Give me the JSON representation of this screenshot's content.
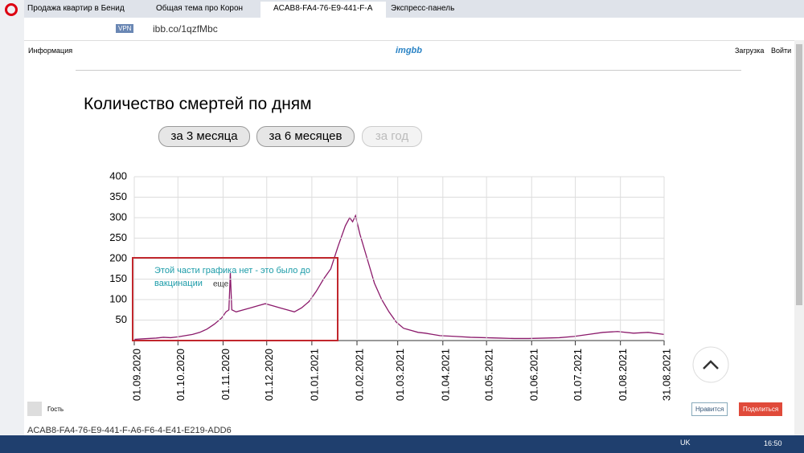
{
  "tabs": [
    "Продажа квартир в Бенид",
    "Общая тема про Корон",
    "ACAB8-FA4-76-E9-441-F-A",
    "Экспресс-панель"
  ],
  "address": {
    "badge": "VPN",
    "url": "ibb.co/1qzfMbc"
  },
  "header": {
    "menu": "Информация",
    "logo": "imgbb",
    "upload": "Загрузка",
    "login": "Войти"
  },
  "chart_data": {
    "type": "line",
    "title": "Количество смертей по дням",
    "buttons": [
      "за 3 месяца",
      "за 6 месяцев",
      "за год"
    ],
    "annotations": [
      "Этой части графика нет - это было до",
      "вакцинации",
      "еще"
    ],
    "xlim": [
      "01.09.2020",
      "31.08.2021"
    ],
    "xticks": [
      "01.09.2020",
      "01.10.2020",
      "01.11.2020",
      "01.12.2020",
      "01.01.2021",
      "01.02.2021",
      "01.03.2021",
      "01.04.2021",
      "01.05.2021",
      "01.06.2021",
      "01.07.2021",
      "01.08.2021",
      "31.08.2021"
    ],
    "ylim": [
      0,
      400
    ],
    "yticks": [
      50,
      100,
      150,
      200,
      250,
      300,
      350,
      400
    ],
    "grid": true,
    "series": [
      {
        "color": "#8b1a6b",
        "x": [
          "01.09.2020",
          "06.09.2020",
          "11.09.2020",
          "16.09.2020",
          "21.09.2020",
          "26.09.2020",
          "01.10.2020",
          "06.10.2020",
          "11.10.2020",
          "16.10.2020",
          "21.10.2020",
          "26.10.2020",
          "31.10.2020",
          "03.11.2020",
          "05.11.2020",
          "06.11.2020",
          "07.11.2020",
          "10.11.2020",
          "15.11.2020",
          "20.11.2020",
          "25.11.2020",
          "30.11.2020",
          "05.12.2020",
          "10.12.2020",
          "15.12.2020",
          "20.12.2020",
          "25.12.2020",
          "30.12.2020",
          "04.01.2021",
          "09.01.2021",
          "14.01.2021",
          "19.01.2021",
          "24.01.2021",
          "27.01.2021",
          "29.01.2021",
          "31.01.2021",
          "03.02.2021",
          "08.02.2021",
          "13.02.2021",
          "18.02.2021",
          "23.02.2021",
          "28.02.2021",
          "05.03.2021",
          "10.03.2021",
          "15.03.2021",
          "20.03.2021",
          "25.03.2021",
          "30.03.2021",
          "10.04.2021",
          "20.04.2021",
          "30.04.2021",
          "10.05.2021",
          "20.05.2021",
          "30.05.2021",
          "10.06.2021",
          "20.06.2021",
          "30.06.2021",
          "10.07.2021",
          "20.07.2021",
          "30.07.2021",
          "10.08.2021",
          "20.08.2021",
          "31.08.2021"
        ],
        "values": [
          3,
          4,
          5,
          6,
          8,
          7,
          9,
          12,
          15,
          20,
          28,
          40,
          55,
          70,
          75,
          165,
          75,
          70,
          75,
          80,
          85,
          90,
          85,
          80,
          75,
          70,
          80,
          95,
          120,
          150,
          175,
          230,
          280,
          300,
          290,
          305,
          260,
          200,
          140,
          100,
          70,
          45,
          30,
          25,
          20,
          18,
          15,
          12,
          10,
          8,
          7,
          6,
          5,
          5,
          6,
          7,
          10,
          15,
          20,
          22,
          18,
          20,
          15
        ]
      }
    ]
  },
  "footer": {
    "user": "Гость",
    "like": "Нравится",
    "share": "Поделиться",
    "filename": "ACAB8-FA4-76-E9-441-F-A6-F6-4-E41-E219-ADD6"
  },
  "taskbar": {
    "lang": "UK",
    "time": "16:50"
  }
}
